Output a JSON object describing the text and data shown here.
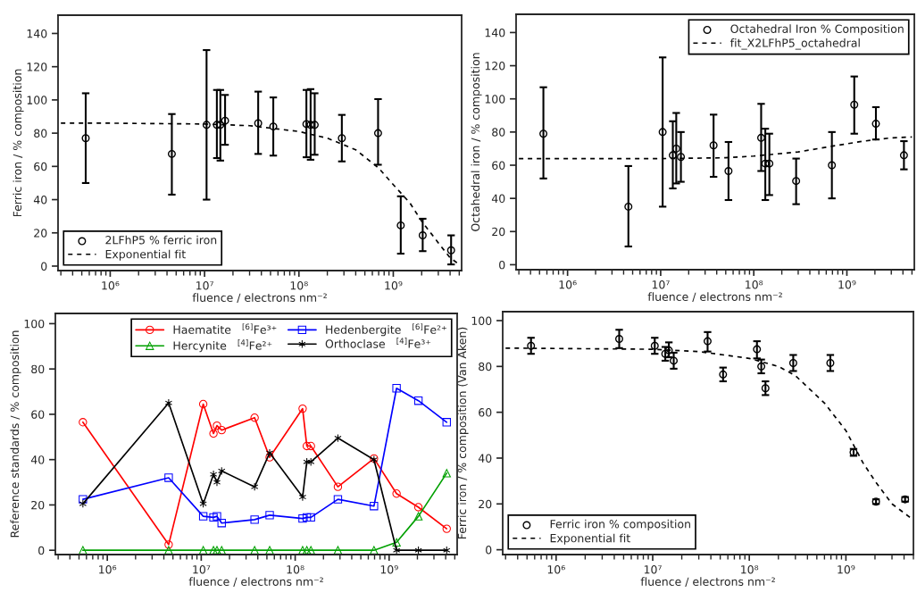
{
  "chart_data": [
    {
      "type": "scatter",
      "xlabel": "fluence / electrons nm⁻²",
      "ylabel": "Ferric iron / % composition",
      "log": "x",
      "xlim": [
        280000.0,
        5300000000.0
      ],
      "ylim": [
        -2.7,
        151
      ],
      "xticks": [
        {
          "value": 1000000.0,
          "label": "10⁶"
        },
        {
          "value": 10000000.0,
          "label": "10⁷"
        },
        {
          "value": 100000000.0,
          "label": "10⁸"
        },
        {
          "value": 1000000000.0,
          "label": "10⁹"
        }
      ],
      "yticks": [
        0,
        20,
        40,
        60,
        80,
        100,
        120,
        140
      ],
      "legend": "bottom left",
      "grid": false,
      "x": [
        550000.0,
        4500000.0,
        10500000.0,
        13500000.0,
        14700000.0,
        16500000.0,
        37000000.0,
        53500000.0,
        120000000.0,
        133000000.0,
        147000000.0,
        285000000.0,
        690000000.0,
        1200000000.0,
        2050000000.0,
        4100000000.0
      ],
      "series": [
        {
          "name": "2LFhP5 % ferric iron",
          "marker": "circle",
          "color": "#000000",
          "values": [
            77,
            67.5,
            85,
            85,
            85,
            87.5,
            86,
            84,
            85.5,
            85,
            85,
            77,
            80,
            24.5,
            18.5,
            9.5
          ],
          "errors": [
            [
              50,
              104
            ],
            [
              43,
              91.5
            ],
            [
              40,
              130
            ],
            [
              65,
              106
            ],
            [
              63.5,
              106
            ],
            [
              73,
              103
            ],
            [
              67.5,
              105
            ],
            [
              66.5,
              101.5
            ],
            [
              65.5,
              106
            ],
            [
              64,
              106.5
            ],
            [
              67,
              104
            ],
            [
              63,
              91
            ],
            [
              61,
              100.5
            ],
            [
              7.5,
              42
            ],
            [
              9,
              28.5
            ],
            [
              1,
              18.5
            ]
          ]
        },
        {
          "name": "Exponential fit",
          "type": "line",
          "line_style": "dashed",
          "color": "#000000",
          "x": [
            300000.0,
            1000000.0,
            10000000.0,
            30000000.0,
            100000000.0,
            200000000.0,
            400000000.0,
            700000000.0,
            1000000000.0,
            1500000000.0,
            2000000000.0,
            3000000000.0,
            4000000000.0,
            5000000000.0
          ],
          "values": [
            86,
            86,
            85.5,
            84.5,
            81,
            77,
            70,
            59,
            49,
            38,
            27,
            14,
            5,
            1
          ]
        }
      ]
    },
    {
      "type": "scatter",
      "xlabel": "fluence / electrons nm⁻²",
      "ylabel": "Octahedral iron / % composition",
      "log": "x",
      "xlim": [
        280000.0,
        5300000000.0
      ],
      "ylim": [
        -3,
        151
      ],
      "xticks": [
        {
          "value": 1000000.0,
          "label": "10⁶"
        },
        {
          "value": 10000000.0,
          "label": "10⁷"
        },
        {
          "value": 100000000.0,
          "label": "10⁸"
        },
        {
          "value": 1000000000.0,
          "label": "10⁹"
        }
      ],
      "yticks": [
        0,
        20,
        40,
        60,
        80,
        100,
        120,
        140
      ],
      "legend": "top right",
      "grid": false,
      "x": [
        550000.0,
        4500000.0,
        10500000.0,
        13500000.0,
        14700000.0,
        16500000.0,
        37000000.0,
        53500000.0,
        120000000.0,
        133000000.0,
        147000000.0,
        285000000.0,
        690000000.0,
        1200000000.0,
        2050000000.0,
        4100000000.0
      ],
      "series": [
        {
          "name": "Octahedral Iron % Composition",
          "marker": "circle",
          "color": "#000000",
          "values": [
            79,
            35,
            80,
            66,
            70,
            65,
            72,
            56.5,
            76.5,
            61,
            61,
            50.5,
            60,
            96.5,
            85,
            66
          ],
          "errors": [
            [
              52,
              107
            ],
            [
              11,
              59.5
            ],
            [
              35,
              125
            ],
            [
              46,
              86.5
            ],
            [
              49,
              91.5
            ],
            [
              50,
              80
            ],
            [
              53,
              90.5
            ],
            [
              39,
              74
            ],
            [
              56.5,
              97
            ],
            [
              39,
              82
            ],
            [
              42,
              79
            ],
            [
              36.5,
              64
            ],
            [
              40,
              80
            ],
            [
              79,
              113.5
            ],
            [
              75.5,
              95
            ],
            [
              57.5,
              74.5
            ]
          ]
        },
        {
          "name": "fit_X2LFhP5_octahedral",
          "type": "line",
          "line_style": "dashed",
          "color": "#000000",
          "x": [
            300000.0,
            10000000.0,
            50000000.0,
            100000000.0,
            300000000.0,
            700000000.0,
            1500000000.0,
            3000000000.0,
            5000000000.0
          ],
          "values": [
            64,
            64,
            64.5,
            65.5,
            68,
            71.5,
            74.5,
            76.5,
            77
          ]
        }
      ]
    },
    {
      "type": "line",
      "xlabel": "fluence / electrons nm⁻²",
      "ylabel": "Reference standards / % composition",
      "log": "x",
      "xlim": [
        280000.0,
        5300000000.0
      ],
      "ylim": [
        -1.9,
        104.5
      ],
      "xticks": [
        {
          "value": 1000000.0,
          "label": "10⁶"
        },
        {
          "value": 10000000.0,
          "label": "10⁷"
        },
        {
          "value": 100000000.0,
          "label": "10⁸"
        },
        {
          "value": 1000000000.0,
          "label": "10⁹"
        }
      ],
      "yticks": [
        0,
        20,
        40,
        60,
        80,
        100
      ],
      "legend": "top right",
      "grid": false,
      "x": [
        550000.0,
        4500000.0,
        10500000.0,
        13500000.0,
        14700000.0,
        16500000.0,
        37000000.0,
        53500000.0,
        120000000.0,
        133000000.0,
        147000000.0,
        285000000.0,
        690000000.0,
        1200000000.0,
        2050000000.0,
        4100000000.0
      ],
      "series": [
        {
          "name": "Haematite   $^{[6]}$Fe³⁺",
          "marker": "circle",
          "color": "#ff0000",
          "values": [
            56.5,
            2.5,
            64.5,
            51.5,
            55,
            53,
            58.5,
            41,
            62.5,
            46,
            46,
            28,
            40.5,
            25,
            19,
            9.5
          ]
        },
        {
          "name": "Hercynite   $^{[4]}$Fe²⁺",
          "marker": "triangle",
          "color": "#00a000",
          "values": [
            0,
            0,
            0,
            0,
            0,
            0,
            0,
            0,
            0,
            0,
            0,
            0,
            0,
            3.5,
            15,
            34
          ]
        },
        {
          "name": "Hedenbergite   $^{[6]}$Fe²⁺",
          "marker": "square",
          "color": "#0000ff",
          "values": [
            22.5,
            32,
            15,
            14.5,
            15,
            12,
            13.5,
            15.5,
            14,
            14.5,
            14.5,
            22.5,
            19.5,
            71.5,
            66,
            56.5
          ]
        },
        {
          "name": "Orthoclase   $^{[4]}$Fe³⁺",
          "marker": "cross",
          "color": "#000000",
          "values": [
            20.5,
            65,
            20.5,
            33.5,
            30,
            35,
            28,
            43,
            23.5,
            39,
            39,
            49.5,
            40,
            0,
            0,
            0
          ]
        }
      ]
    },
    {
      "type": "scatter",
      "xlabel": "fluence / electrons nm⁻²",
      "ylabel": "Ferric iron / % composition (Van Aken)",
      "log": "x",
      "xlim": [
        280000.0,
        5000000000.0
      ],
      "ylim": [
        -2.1,
        103.9
      ],
      "xticks": [
        {
          "value": 1000000.0,
          "label": "10⁶"
        },
        {
          "value": 10000000.0,
          "label": "10⁷"
        },
        {
          "value": 100000000.0,
          "label": "10⁸"
        },
        {
          "value": 1000000000.0,
          "label": "10⁹"
        }
      ],
      "yticks": [
        0,
        20,
        40,
        60,
        80,
        100
      ],
      "legend": "bottom left",
      "grid": false,
      "x": [
        550000.0,
        4500000.0,
        10500000.0,
        13500000.0,
        14700000.0,
        16500000.0,
        37000000.0,
        53500000.0,
        120000000.0,
        133000000.0,
        147000000.0,
        285000000.0,
        690000000.0,
        1200000000.0,
        2050000000.0,
        4100000000.0
      ],
      "series": [
        {
          "name": "Ferric iron % composition",
          "marker": "circle",
          "color": "#000000",
          "values": [
            89,
            92,
            89,
            85.5,
            87,
            82.5,
            91,
            76.5,
            87.5,
            80,
            70.5,
            81.5,
            81.5,
            42.5,
            21,
            22
          ],
          "errors": [
            [
              85.5,
              92.5
            ],
            [
              88,
              96
            ],
            [
              85.5,
              92.5
            ],
            [
              82.5,
              88.5
            ],
            [
              84,
              90.5
            ],
            [
              79,
              86
            ],
            [
              86.5,
              95
            ],
            [
              73.5,
              79.5
            ],
            [
              83.5,
              91
            ],
            [
              77,
              83
            ],
            [
              67.5,
              73.5
            ],
            [
              78,
              85
            ],
            [
              78,
              85
            ],
            [
              41,
              44
            ],
            [
              20,
              22
            ],
            [
              21,
              23
            ]
          ]
        },
        {
          "name": "Exponential fit",
          "type": "line",
          "line_style": "dashed",
          "color": "#000000",
          "x": [
            300000.0,
            10000000.0,
            30000000.0,
            100000000.0,
            200000000.0,
            300000000.0,
            600000000.0,
            1000000000.0,
            1500000000.0,
            2000000000.0,
            3000000000.0,
            5000000000.0
          ],
          "values": [
            88,
            87.5,
            86.5,
            83.5,
            80,
            76,
            64,
            52,
            38,
            30,
            20,
            13
          ]
        }
      ]
    }
  ]
}
